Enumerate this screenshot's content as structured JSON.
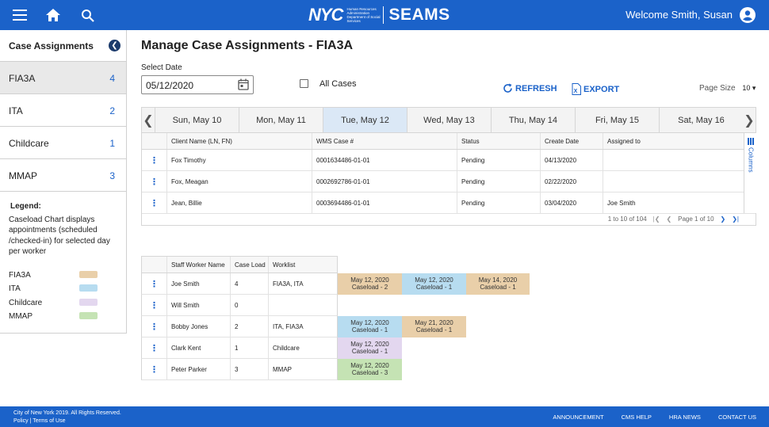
{
  "header": {
    "brand_nyc": "NYC",
    "brand_agency": "Human Resources Administration Department of Social Services",
    "brand_app": "SEAMS",
    "welcome": "Welcome Smith, Susan",
    "icons": [
      "menu-icon",
      "home-icon",
      "search-icon",
      "user-icon"
    ]
  },
  "sidebar": {
    "title": "Case Assignments",
    "items": [
      {
        "label": "FIA3A",
        "count": "4"
      },
      {
        "label": "ITA",
        "count": "2"
      },
      {
        "label": "Childcare",
        "count": "1"
      },
      {
        "label": "MMAP",
        "count": "3"
      }
    ],
    "legend_title": "Legend:",
    "legend_desc": "Caseload Chart displays appointments (scheduled /checked-in) for selected day per worker",
    "legend": [
      {
        "label": "FIA3A",
        "color": "#e9cfa9"
      },
      {
        "label": "ITA",
        "color": "#b7dcf0"
      },
      {
        "label": "Childcare",
        "color": "#e3d7ef"
      },
      {
        "label": "MMAP",
        "color": "#c5e3b4"
      }
    ]
  },
  "main": {
    "title": "Manage Case Assignments - FIA3A",
    "select_date_label": "Select Date",
    "date_value": "05/12/2020",
    "all_cases_label": "All Cases",
    "refresh_label": "REFRESH",
    "export_label": "EXPORT",
    "page_size_label": "Page Size",
    "page_size_value": "10",
    "days": [
      "Sun, May 10",
      "Mon, May 11",
      "Tue, May 12",
      "Wed, May 13",
      "Thu, May 14",
      "Fri, May 15",
      "Sat, May 16"
    ],
    "selected_day": "Tue, May 12"
  },
  "cases_table": {
    "columns": [
      "Client Name (LN, FN)",
      "WMS Case #",
      "Status",
      "Create Date",
      "Assigned to"
    ],
    "rows": [
      [
        "Fox Timothy",
        "0001634486-01-01",
        "Pending",
        "04/13/2020",
        ""
      ],
      [
        "Fox, Meagan",
        "0002692786-01-01",
        "Pending",
        "02/22/2020",
        ""
      ],
      [
        "Jean, Billie",
        "0003694486-01-01",
        "Pending",
        "03/04/2020",
        "Joe Smith"
      ]
    ],
    "columns_tab": "Columns",
    "range_text": "1 to 10 of 104",
    "page_text": "Page 1 of 10"
  },
  "workers_table": {
    "columns": [
      "Staff Worker Name",
      "Case Load",
      "Worklist"
    ],
    "rows": [
      {
        "name": "Joe Smith",
        "load": "4",
        "worklist": "FIA3A, ITA",
        "appts": [
          {
            "date": "May 12, 2020",
            "caseload": "Caseload - 2",
            "type": "FIA3A"
          },
          {
            "date": "May 12, 2020",
            "caseload": "Caseload - 1",
            "type": "ITA"
          },
          {
            "date": "May 14, 2020",
            "caseload": "Caseload - 1",
            "type": "FIA3A"
          }
        ]
      },
      {
        "name": "Will Smith",
        "load": "0",
        "worklist": "",
        "appts": []
      },
      {
        "name": "Bobby Jones",
        "load": "2",
        "worklist": "ITA, FIA3A",
        "appts": [
          {
            "date": "May 12, 2020",
            "caseload": "Caseload - 1",
            "type": "ITA"
          },
          {
            "date": "May 21, 2020",
            "caseload": "Caseload - 1",
            "type": "FIA3A"
          }
        ]
      },
      {
        "name": "Clark Kent",
        "load": "1",
        "worklist": "Childcare",
        "appts": [
          {
            "date": "May 12, 2020",
            "caseload": "Caseload - 1",
            "type": "Childcare"
          }
        ]
      },
      {
        "name": "Peter Parker",
        "load": "3",
        "worklist": "MMAP",
        "appts": [
          {
            "date": "May 12, 2020",
            "caseload": "Caseload - 3",
            "type": "MMAP"
          }
        ]
      }
    ]
  },
  "footer": {
    "copyright": "City of New York 2019. All Rights Reserved.",
    "policy": "Policy | Terms of Use",
    "links": [
      "ANNOUNCEMENT",
      "CMS HELP",
      "HRA NEWS",
      "CONTACT US"
    ]
  }
}
